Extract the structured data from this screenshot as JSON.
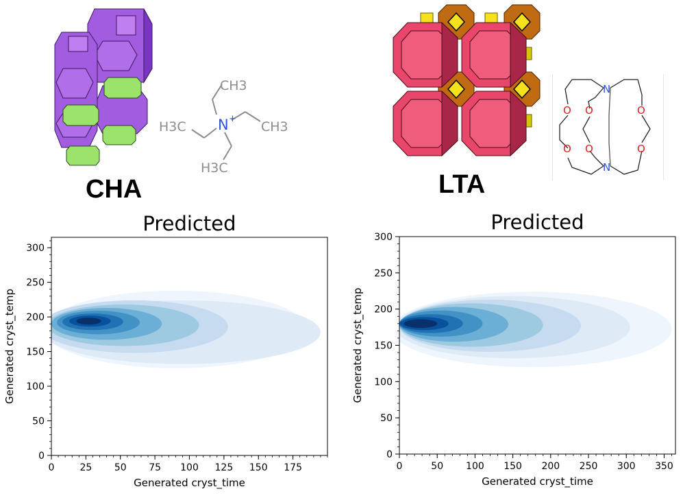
{
  "zeolites": [
    {
      "name": "CHA",
      "osda": {
        "atoms": {
          "n": "N",
          "n_charge": "+",
          "methyl_top": "CH3",
          "methyl_right": "CH3",
          "methyl_left": "H3C",
          "methyl_bottom": "H3C"
        }
      }
    },
    {
      "name": "LTA",
      "osda": {
        "atoms": {
          "n_top": "N",
          "n_bottom": "N",
          "o": "O"
        }
      }
    }
  ],
  "colors": {
    "cha_cage": "#a25ce0",
    "cha_cage_dark": "#7a35c2",
    "cha_prism": "#9be36a",
    "lta_cage": "#e8466a",
    "lta_cage_dark": "#a82648",
    "lta_sodalite": "#c06a12",
    "lta_square": "#f6e11a",
    "osda_gray": "#8c8c8c",
    "nitrogen": "#3050e0",
    "oxygen": "#e02020",
    "kde_levels": [
      "#eef5fc",
      "#deebf7",
      "#c6dbef",
      "#9ecae1",
      "#6baed6",
      "#4292c6",
      "#2171b5",
      "#08519c",
      "#08306b"
    ]
  },
  "chart_data": [
    {
      "type": "kde_contour",
      "title": "Predicted",
      "xlabel": "Generated cryst_time",
      "ylabel": "Generated cryst_temp",
      "xlim": [
        0,
        200
      ],
      "ylim": [
        0,
        315
      ],
      "xticks": [
        0,
        25,
        50,
        75,
        100,
        125,
        150,
        175
      ],
      "yticks": [
        0,
        50,
        100,
        150,
        200,
        250,
        300
      ],
      "density_levels": [
        {
          "center": [
            90,
            182
          ],
          "half_width": [
            95,
            56
          ]
        },
        {
          "center": [
            95,
            178
          ],
          "half_width": [
            100,
            46
          ]
        },
        {
          "center": [
            60,
            186
          ],
          "half_width": [
            68,
            38
          ]
        },
        {
          "center": [
            52,
            188
          ],
          "half_width": [
            55,
            30
          ]
        },
        {
          "center": [
            40,
            190
          ],
          "half_width": [
            40,
            23
          ]
        },
        {
          "center": [
            34,
            192
          ],
          "half_width": [
            30,
            17
          ]
        },
        {
          "center": [
            30,
            193
          ],
          "half_width": [
            22,
            12
          ]
        },
        {
          "center": [
            28,
            194
          ],
          "half_width": [
            15,
            8
          ]
        },
        {
          "center": [
            27,
            194
          ],
          "half_width": [
            9,
            5
          ]
        }
      ]
    },
    {
      "type": "kde_contour",
      "title": "Predicted",
      "xlabel": "Generated cryst_time",
      "ylabel": "Generated cryst_temp",
      "xlim": [
        0,
        365
      ],
      "ylim": [
        0,
        300
      ],
      "xticks": [
        0,
        50,
        100,
        150,
        200,
        250,
        300,
        350
      ],
      "yticks": [
        0,
        50,
        100,
        150,
        200,
        250,
        300
      ],
      "density_levels": [
        {
          "center": [
            175,
            172
          ],
          "half_width": [
            185,
            52
          ]
        },
        {
          "center": [
            150,
            175
          ],
          "half_width": [
            155,
            43
          ]
        },
        {
          "center": [
            120,
            177
          ],
          "half_width": [
            120,
            36
          ]
        },
        {
          "center": [
            95,
            178
          ],
          "half_width": [
            95,
            30
          ]
        },
        {
          "center": [
            72,
            179
          ],
          "half_width": [
            72,
            24
          ]
        },
        {
          "center": [
            55,
            180
          ],
          "half_width": [
            55,
            18
          ]
        },
        {
          "center": [
            42,
            180
          ],
          "half_width": [
            42,
            13
          ]
        },
        {
          "center": [
            33,
            180
          ],
          "half_width": [
            32,
            9
          ]
        },
        {
          "center": [
            28,
            180
          ],
          "half_width": [
            22,
            6
          ]
        }
      ]
    }
  ]
}
